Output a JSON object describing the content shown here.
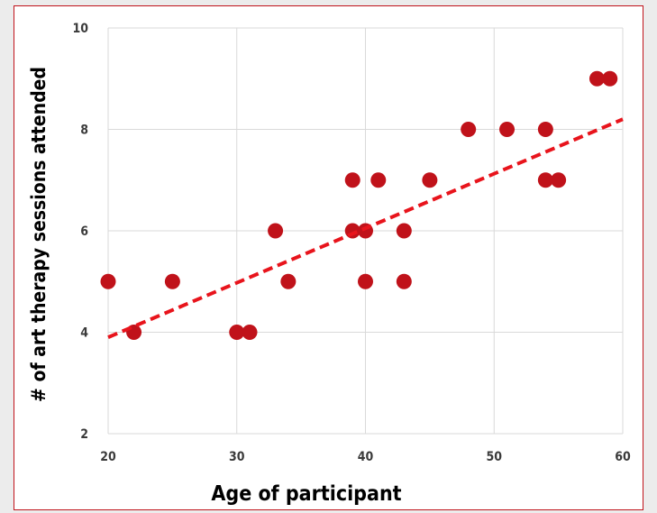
{
  "chart_data": {
    "type": "scatter",
    "xlabel": "Age of participant",
    "ylabel": "# of art therapy sessions attended",
    "xlim": [
      20,
      60
    ],
    "ylim": [
      2,
      10
    ],
    "xticks": [
      20,
      30,
      40,
      50,
      60
    ],
    "yticks": [
      2,
      4,
      6,
      8,
      10
    ],
    "x_tick_labels": [
      "20",
      "30",
      "40",
      "50",
      "60"
    ],
    "y_tick_labels": [
      "2",
      "4",
      "6",
      "8",
      "10"
    ],
    "grid": true,
    "legend": "none",
    "series": [
      {
        "points": [
          {
            "x": 20,
            "y": 5
          },
          {
            "x": 22,
            "y": 4
          },
          {
            "x": 25,
            "y": 5
          },
          {
            "x": 30,
            "y": 4
          },
          {
            "x": 31,
            "y": 4
          },
          {
            "x": 33,
            "y": 6
          },
          {
            "x": 34,
            "y": 5
          },
          {
            "x": 39,
            "y": 7
          },
          {
            "x": 39,
            "y": 6
          },
          {
            "x": 40,
            "y": 6
          },
          {
            "x": 40,
            "y": 5
          },
          {
            "x": 41,
            "y": 7
          },
          {
            "x": 43,
            "y": 6
          },
          {
            "x": 43,
            "y": 5
          },
          {
            "x": 45,
            "y": 7
          },
          {
            "x": 48,
            "y": 8
          },
          {
            "x": 51,
            "y": 8
          },
          {
            "x": 54,
            "y": 8
          },
          {
            "x": 54,
            "y": 7
          },
          {
            "x": 55,
            "y": 7
          },
          {
            "x": 58,
            "y": 9
          },
          {
            "x": 59,
            "y": 9
          }
        ]
      }
    ],
    "trendline": {
      "style": "dashed",
      "start": {
        "x": 20,
        "y": 3.9
      },
      "end": {
        "x": 60,
        "y": 8.2
      }
    },
    "colors": {
      "marker": "#c0121a",
      "trendline": "#e8141c",
      "frame": "#c0121a",
      "grid": "#d9d9d9"
    }
  }
}
